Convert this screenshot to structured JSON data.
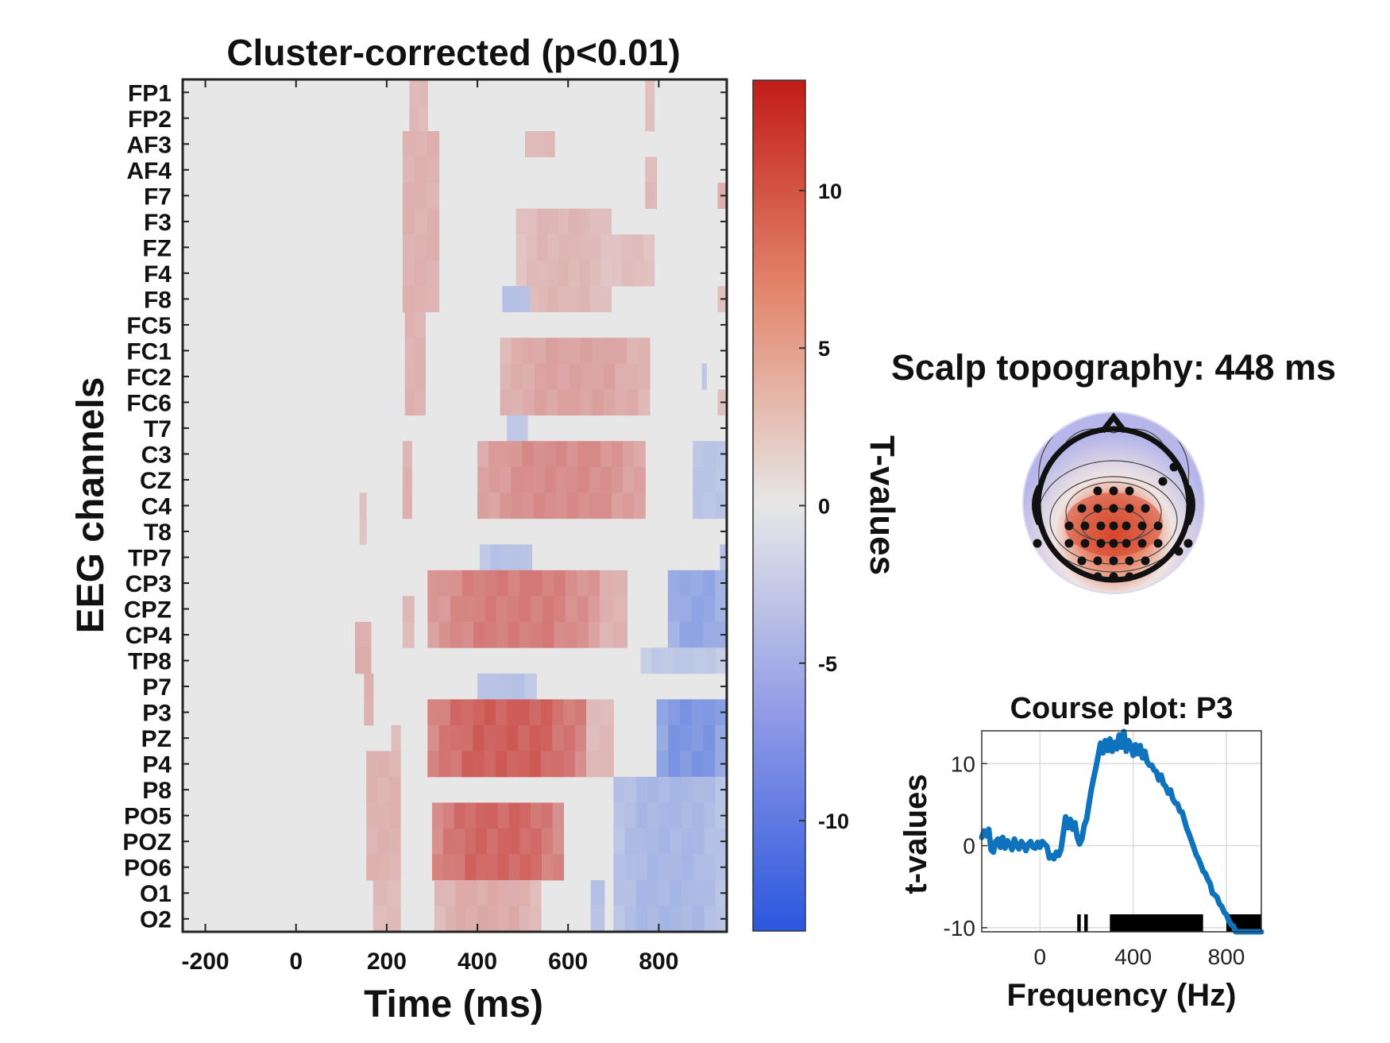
{
  "chart_data": [
    {
      "type": "heatmap",
      "title": "Cluster-corrected (p<0.01)",
      "xlabel": "Time (ms)",
      "ylabel": "EEG channels",
      "xlim": [
        -250,
        950
      ],
      "xticks": [
        -200,
        0,
        200,
        400,
        600,
        800
      ],
      "xtick_labels": [
        "-200",
        "0",
        "200",
        "400",
        "600",
        "800"
      ],
      "channels": [
        "FP1",
        "FP2",
        "AF3",
        "AF4",
        "F7",
        "F3",
        "FZ",
        "F4",
        "F8",
        "FC5",
        "FC1",
        "FC2",
        "FC6",
        "T7",
        "C3",
        "CZ",
        "C4",
        "T8",
        "TP7",
        "CP3",
        "CPZ",
        "CP4",
        "TP8",
        "P7",
        "P3",
        "PZ",
        "P4",
        "P8",
        "PO5",
        "POZ",
        "PO6",
        "O1",
        "O2"
      ],
      "clim": [
        -13.5,
        13.5
      ],
      "colorbar": {
        "label": "T-values",
        "ticks": [
          10,
          5,
          0,
          -5,
          -10
        ],
        "tick_labels": [
          "10",
          "5",
          "0",
          "-5",
          "-10"
        ],
        "colors": {
          "low": "#2b57de",
          "mid": "#e7e7e7",
          "high": "#c21c17"
        }
      },
      "clusters": [
        {
          "ch": [
            0,
            1
          ],
          "t": [
            250,
            290
          ],
          "v": 3.0
        },
        {
          "ch": [
            0,
            1
          ],
          "t": [
            770,
            790
          ],
          "v": 2.5
        },
        {
          "ch": [
            2,
            8
          ],
          "t": [
            235,
            315
          ],
          "v": 3.5
        },
        {
          "ch": [
            2,
            2
          ],
          "t": [
            505,
            570
          ],
          "v": 3.0
        },
        {
          "ch": [
            3,
            4
          ],
          "t": [
            770,
            795
          ],
          "v": 3.0
        },
        {
          "ch": [
            4,
            4
          ],
          "t": [
            930,
            950
          ],
          "v": 3.5
        },
        {
          "ch": [
            5,
            8
          ],
          "t": [
            485,
            695
          ],
          "v": 3.2
        },
        {
          "ch": [
            6,
            7
          ],
          "t": [
            695,
            790
          ],
          "v": 2.8
        },
        {
          "ch": [
            8,
            8
          ],
          "t": [
            930,
            950
          ],
          "v": 2.5
        },
        {
          "ch": [
            8,
            8
          ],
          "t": [
            455,
            515
          ],
          "v": -3.5
        },
        {
          "ch": [
            9,
            12
          ],
          "t": [
            240,
            285
          ],
          "v": 3.5
        },
        {
          "ch": [
            10,
            12
          ],
          "t": [
            450,
            780
          ],
          "v": 4.5
        },
        {
          "ch": [
            11,
            11
          ],
          "t": [
            895,
            905
          ],
          "v": -3.0
        },
        {
          "ch": [
            12,
            12
          ],
          "t": [
            930,
            945
          ],
          "v": 2.5
        },
        {
          "ch": [
            13,
            13
          ],
          "t": [
            465,
            510
          ],
          "v": -3.0
        },
        {
          "ch": [
            14,
            16
          ],
          "t": [
            235,
            255
          ],
          "v": 3.5
        },
        {
          "ch": [
            14,
            16
          ],
          "t": [
            400,
            770
          ],
          "v": 6.0
        },
        {
          "ch": [
            14,
            16
          ],
          "t": [
            875,
            950
          ],
          "v": -3.2
        },
        {
          "ch": [
            16,
            17
          ],
          "t": [
            140,
            155
          ],
          "v": 2.5
        },
        {
          "ch": [
            18,
            18
          ],
          "t": [
            405,
            520
          ],
          "v": -3.5
        },
        {
          "ch": [
            18,
            18
          ],
          "t": [
            935,
            950
          ],
          "v": -4.0
        },
        {
          "ch": [
            19,
            21
          ],
          "t": [
            290,
            670
          ],
          "v": 7.0
        },
        {
          "ch": [
            19,
            21
          ],
          "t": [
            670,
            730
          ],
          "v": 3.5
        },
        {
          "ch": [
            19,
            21
          ],
          "t": [
            820,
            950
          ],
          "v": -6.0
        },
        {
          "ch": [
            20,
            21
          ],
          "t": [
            235,
            260
          ],
          "v": 3.0
        },
        {
          "ch": [
            21,
            22
          ],
          "t": [
            130,
            165
          ],
          "v": 4.0
        },
        {
          "ch": [
            22,
            22
          ],
          "t": [
            760,
            950
          ],
          "v": -3.0
        },
        {
          "ch": [
            23,
            23
          ],
          "t": [
            400,
            530
          ],
          "v": -3.5
        },
        {
          "ch": [
            23,
            24
          ],
          "t": [
            150,
            170
          ],
          "v": 3.5
        },
        {
          "ch": [
            24,
            26
          ],
          "t": [
            290,
            640
          ],
          "v": 9.0
        },
        {
          "ch": [
            24,
            26
          ],
          "t": [
            640,
            700
          ],
          "v": 3.0
        },
        {
          "ch": [
            24,
            28
          ],
          "t": [
            795,
            950
          ],
          "v": -7.5
        },
        {
          "ch": [
            25,
            26
          ],
          "t": [
            210,
            230
          ],
          "v": 3.0
        },
        {
          "ch": [
            26,
            30
          ],
          "t": [
            155,
            230
          ],
          "v": 3.5
        },
        {
          "ch": [
            27,
            32
          ],
          "t": [
            700,
            950
          ],
          "v": -4.5
        },
        {
          "ch": [
            28,
            30
          ],
          "t": [
            300,
            590
          ],
          "v": 8.5
        },
        {
          "ch": [
            31,
            32
          ],
          "t": [
            170,
            230
          ],
          "v": 3.0
        },
        {
          "ch": [
            31,
            32
          ],
          "t": [
            305,
            540
          ],
          "v": 4.0
        },
        {
          "ch": [
            31,
            32
          ],
          "t": [
            650,
            680
          ],
          "v": -3.5
        }
      ]
    },
    {
      "type": "topoplot",
      "title": "Scalp topography: 448 ms",
      "electrodes_marked": 35
    },
    {
      "type": "line",
      "title": "Course plot: P3",
      "xlabel": "Frequency (Hz)",
      "ylabel": "t-values",
      "xlim": [
        -250,
        950
      ],
      "ylim": [
        -10.5,
        14
      ],
      "xticks": [
        0,
        400,
        800
      ],
      "xtick_labels": [
        "0",
        "400",
        "800"
      ],
      "yticks": [
        10,
        0,
        -10
      ],
      "ytick_labels": [
        "10",
        "0",
        "-10"
      ],
      "grid": true,
      "series": [
        {
          "color": "#0e72bd",
          "x": [
            -250,
            -240,
            -230,
            -220,
            -210,
            -200,
            -190,
            -180,
            -170,
            -160,
            -150,
            -140,
            -130,
            -120,
            -110,
            -100,
            -90,
            -80,
            -70,
            -60,
            -50,
            -40,
            -30,
            -20,
            -10,
            0,
            10,
            20,
            30,
            40,
            50,
            60,
            70,
            80,
            90,
            100,
            110,
            120,
            130,
            140,
            150,
            160,
            170,
            180,
            190,
            200,
            210,
            220,
            230,
            240,
            250,
            260,
            270,
            280,
            290,
            300,
            310,
            320,
            330,
            340,
            350,
            360,
            370,
            380,
            390,
            400,
            410,
            420,
            430,
            440,
            450,
            460,
            470,
            480,
            490,
            500,
            510,
            520,
            530,
            540,
            550,
            560,
            570,
            580,
            590,
            600,
            610,
            620,
            630,
            640,
            650,
            660,
            670,
            680,
            690,
            700,
            710,
            720,
            730,
            740,
            750,
            760,
            770,
            780,
            790,
            800,
            810,
            820,
            830,
            840,
            850,
            860,
            870,
            880,
            890,
            900,
            910,
            920,
            930,
            940,
            950
          ],
          "y": [
            1,
            1.8,
            1.2,
            2,
            -0.5,
            -0.8,
            0.5,
            0.8,
            -0.2,
            1,
            -0.3,
            0.6,
            0.2,
            -0.5,
            0.8,
            0,
            -0.4,
            0.5,
            0.1,
            -0.6,
            0.2,
            0.5,
            -0.2,
            -0.3,
            0.4,
            -0.2,
            0.5,
            0.2,
            -0.1,
            -1.5,
            -1.2,
            -1.6,
            -0.8,
            -1.2,
            -0.5,
            1.5,
            3.5,
            2.2,
            3.2,
            2.0,
            2.8,
            1,
            0.2,
            0.8,
            2.5,
            3.2,
            5,
            6.8,
            8.2,
            9.5,
            11,
            12.5,
            11.3,
            12.8,
            11.6,
            13,
            11.5,
            12.6,
            11.8,
            13.5,
            12,
            13.9,
            11.5,
            12.8,
            12.2,
            11,
            12.3,
            11.2,
            12.2,
            10.7,
            11.5,
            10.2,
            9.8,
            9.8,
            9.2,
            9,
            8,
            8.6,
            7.5,
            7.2,
            6.4,
            6.8,
            5.7,
            5.2,
            5.1,
            4.2,
            4.1,
            3.1,
            2.1,
            1.4,
            0.6,
            -0.2,
            -1.1,
            -1.6,
            -2.3,
            -3.1,
            -3.4,
            -4.1,
            -4.6,
            -5.8,
            -6,
            -6.3,
            -7.1,
            -7.4,
            -8.1,
            -8.4,
            -9.1,
            -9.6,
            -9.8,
            -10.5,
            -10.5,
            -10.5,
            -10.5,
            -10.5,
            -10.5,
            -10.5,
            -10.5,
            -10.5,
            -10.5,
            -10.5,
            -10.5
          ]
        }
      ],
      "significance_segments": [
        [
          160,
          175
        ],
        [
          190,
          205
        ],
        [
          300,
          700
        ],
        [
          800,
          960
        ]
      ]
    }
  ]
}
